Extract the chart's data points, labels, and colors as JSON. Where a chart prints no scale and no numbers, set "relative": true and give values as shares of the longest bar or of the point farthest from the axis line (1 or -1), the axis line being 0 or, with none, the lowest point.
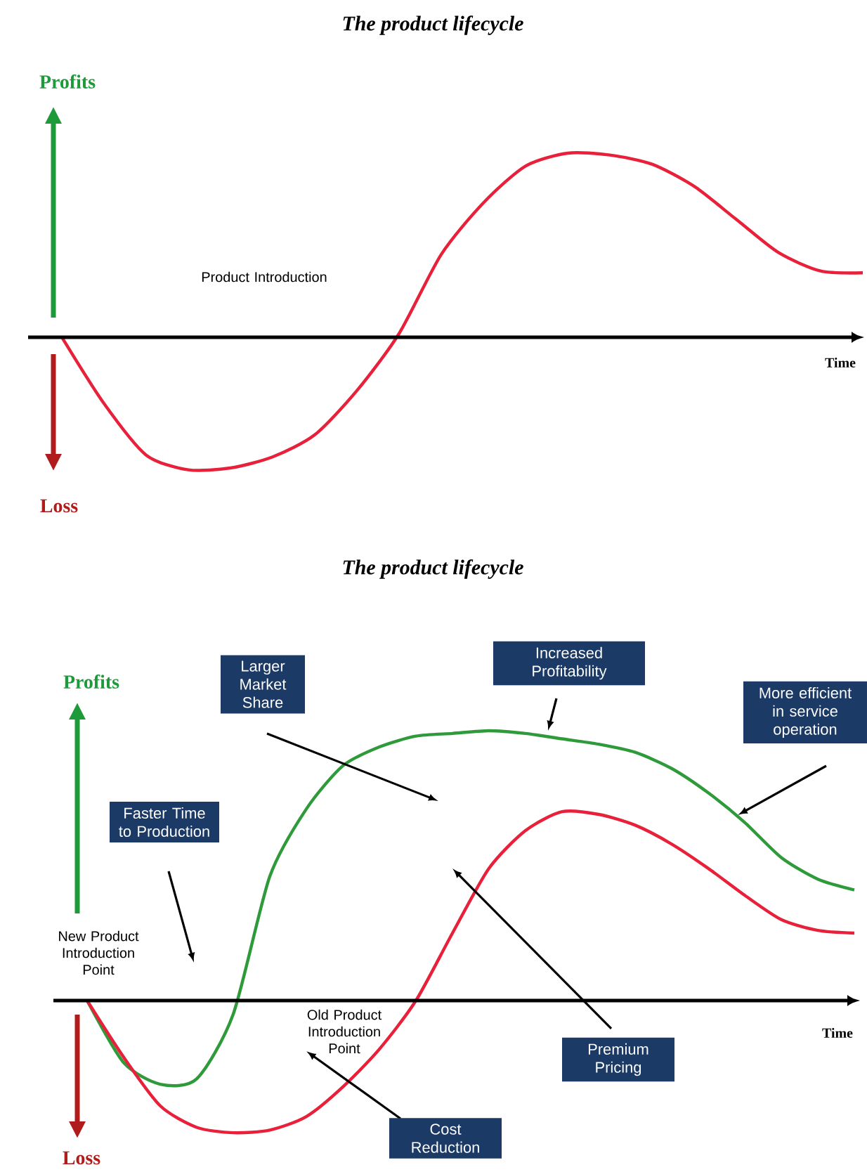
{
  "chart_data": [
    {
      "type": "line",
      "title": "The product lifecycle",
      "xlabel": "Time",
      "relative": true,
      "categories": [
        null,
        null,
        null,
        null,
        null,
        null,
        null,
        null,
        null,
        null,
        null,
        null,
        null,
        null,
        null,
        null,
        null,
        null,
        null,
        null
      ],
      "series": [
        {
          "color": "#e8203a",
          "values": [
            0,
            -0.36,
            -0.64,
            -0.72,
            -0.71,
            -0.65,
            -0.53,
            -0.29,
            0.02,
            0.45,
            0.73,
            0.93,
            1.0,
            0.99,
            0.94,
            0.82,
            0.64,
            0.46,
            0.36,
            0.35
          ]
        }
      ],
      "annotations": [
        "Profits",
        "Loss",
        "Product Introduction"
      ]
    },
    {
      "type": "line",
      "title": "The product lifecycle",
      "xlabel": "Time",
      "relative": true,
      "categories": [
        null,
        null,
        null,
        null,
        null,
        null,
        null,
        null,
        null,
        null,
        null,
        null,
        null,
        null,
        null,
        null,
        null,
        null,
        null,
        null,
        null,
        null
      ],
      "series": [
        {
          "color": "#2e9a3a",
          "values": [
            0,
            -0.23,
            -0.31,
            -0.29,
            -0.05,
            0.46,
            0.71,
            0.87,
            0.94,
            0.98,
            0.99,
            1.0,
            0.99,
            0.97,
            0.95,
            0.92,
            0.86,
            0.77,
            0.66,
            0.53,
            0.45,
            0.41
          ]
        },
        {
          "color": "#e8203a",
          "values": [
            0,
            -0.21,
            -0.39,
            -0.47,
            -0.49,
            -0.48,
            -0.43,
            -0.32,
            -0.18,
            0,
            0.25,
            0.49,
            0.63,
            0.7,
            0.69,
            0.65,
            0.58,
            0.49,
            0.39,
            0.3,
            0.26,
            0.25
          ]
        }
      ],
      "annotations": [
        "Profits",
        "Loss",
        "Larger Market Share",
        "Increased Profitability",
        "More efficient in service operation",
        "Faster Time to Production",
        "New Product Introduction Point",
        "Old Product Introduction Point",
        "Premium Pricing",
        "Cost Reduction"
      ]
    }
  ]
}
